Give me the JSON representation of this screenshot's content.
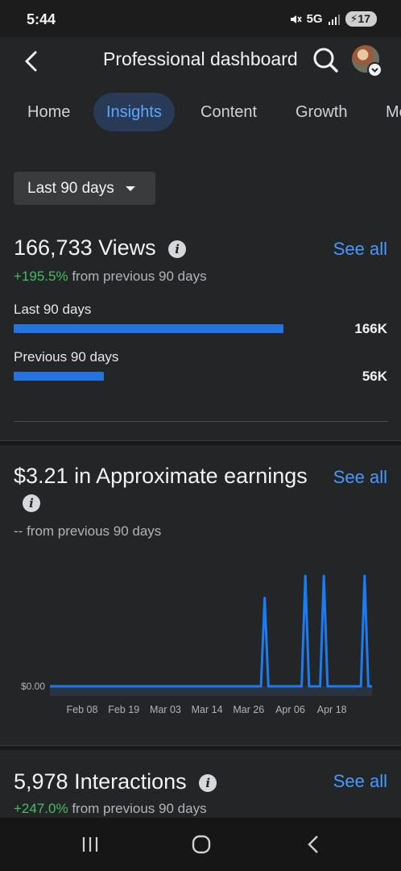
{
  "status": {
    "time": "5:44",
    "network": "5G",
    "battery": "17"
  },
  "header": {
    "title": "Professional dashboard"
  },
  "tabs": [
    {
      "label": "Home"
    },
    {
      "label": "Insights"
    },
    {
      "label": "Content"
    },
    {
      "label": "Growth"
    },
    {
      "label": "Mo"
    }
  ],
  "filter": {
    "range_label": "Last 90 days"
  },
  "views": {
    "title": "166,733 Views",
    "see_all": "See all",
    "delta": "+195.5%",
    "delta_suffix": "from previous 90 days",
    "current_label": "Last 90 days",
    "current_value": "166K",
    "current_fraction": 0.72,
    "previous_label": "Previous 90 days",
    "previous_value": "56K",
    "previous_fraction": 0.24
  },
  "earnings": {
    "title": "$3.21 in Approximate earnings",
    "see_all": "See all",
    "delta": "--",
    "delta_suffix": "from previous 90 days"
  },
  "chart_data": {
    "type": "line",
    "x_ticks": [
      "Feb 08",
      "Feb 19",
      "Mar 03",
      "Mar 14",
      "Mar 26",
      "Apr 06",
      "Apr 18"
    ],
    "y_ticks": [
      "$0.00"
    ],
    "series": [
      {
        "values": [
          0,
          0,
          0,
          0,
          0,
          0,
          0,
          0,
          0,
          0,
          0,
          0,
          0,
          0,
          0,
          0,
          0,
          0,
          0,
          0,
          0,
          0,
          0,
          0,
          0,
          0,
          0,
          0,
          0,
          0,
          0,
          0,
          0,
          0,
          0,
          0,
          0,
          0,
          0,
          0,
          0,
          0,
          0,
          0,
          0,
          0,
          0,
          0,
          0,
          0,
          0,
          0,
          0,
          0,
          0,
          0,
          0,
          0,
          0.8,
          0,
          0,
          0,
          0,
          0,
          0,
          0,
          0,
          0,
          0,
          1,
          0,
          0,
          0,
          0,
          1,
          0,
          0,
          0,
          0,
          0,
          0,
          0,
          0,
          0,
          0,
          1,
          0,
          0
        ]
      }
    ],
    "color": "#1b7cf2"
  },
  "interactions": {
    "title": "5,978 Interactions",
    "see_all": "See all",
    "delta": "+247.0%",
    "delta_suffix": "from previous 90 days"
  }
}
